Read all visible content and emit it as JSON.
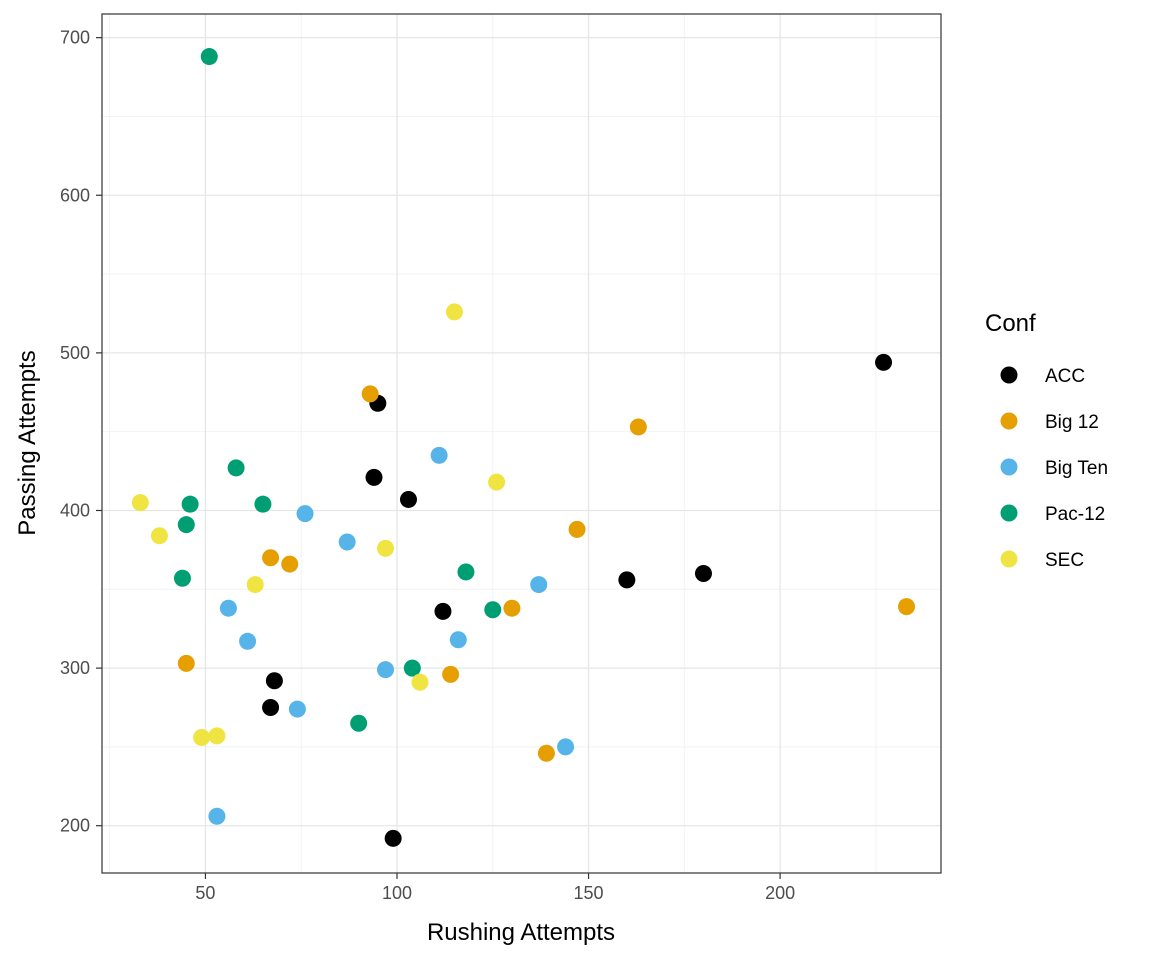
{
  "chart_data": {
    "type": "scatter",
    "xlabel": "Rushing Attempts",
    "ylabel": "Passing Attempts",
    "xlim": [
      23,
      242
    ],
    "ylim": [
      170,
      715
    ],
    "x_ticks": [
      50,
      100,
      150,
      200
    ],
    "y_ticks": [
      200,
      300,
      400,
      500,
      600,
      700
    ],
    "grid": true,
    "legend": {
      "title": "Conf",
      "position": "right"
    },
    "series": [
      {
        "name": "ACC",
        "color": "#000000",
        "points": [
          [
            227,
            494
          ],
          [
            95,
            468
          ],
          [
            94,
            421
          ],
          [
            103,
            407
          ],
          [
            160,
            356
          ],
          [
            180,
            360
          ],
          [
            112,
            336
          ],
          [
            68,
            292
          ],
          [
            67,
            275
          ],
          [
            99,
            192
          ]
        ]
      },
      {
        "name": "Big 12",
        "color": "#E69F00",
        "points": [
          [
            93,
            474
          ],
          [
            163,
            453
          ],
          [
            147,
            388
          ],
          [
            67,
            370
          ],
          [
            72,
            366
          ],
          [
            130,
            338
          ],
          [
            233,
            339
          ],
          [
            45,
            303
          ],
          [
            114,
            296
          ],
          [
            139,
            246
          ]
        ]
      },
      {
        "name": "Big Ten",
        "color": "#56B4E9",
        "points": [
          [
            111,
            435
          ],
          [
            76,
            398
          ],
          [
            87,
            380
          ],
          [
            137,
            353
          ],
          [
            56,
            338
          ],
          [
            61,
            317
          ],
          [
            116,
            318
          ],
          [
            97,
            299
          ],
          [
            74,
            274
          ],
          [
            144,
            250
          ],
          [
            53,
            206
          ]
        ]
      },
      {
        "name": "Pac-12",
        "color": "#009E73",
        "points": [
          [
            51,
            688
          ],
          [
            58,
            427
          ],
          [
            46,
            404
          ],
          [
            65,
            404
          ],
          [
            45,
            391
          ],
          [
            44,
            357
          ],
          [
            118,
            361
          ],
          [
            125,
            337
          ],
          [
            104,
            300
          ],
          [
            90,
            265
          ]
        ]
      },
      {
        "name": "SEC",
        "color": "#F0E442",
        "points": [
          [
            115,
            526
          ],
          [
            126,
            418
          ],
          [
            33,
            405
          ],
          [
            38,
            384
          ],
          [
            97,
            376
          ],
          [
            63,
            353
          ],
          [
            106,
            291
          ],
          [
            53,
            257
          ],
          [
            49,
            256
          ]
        ]
      }
    ]
  }
}
